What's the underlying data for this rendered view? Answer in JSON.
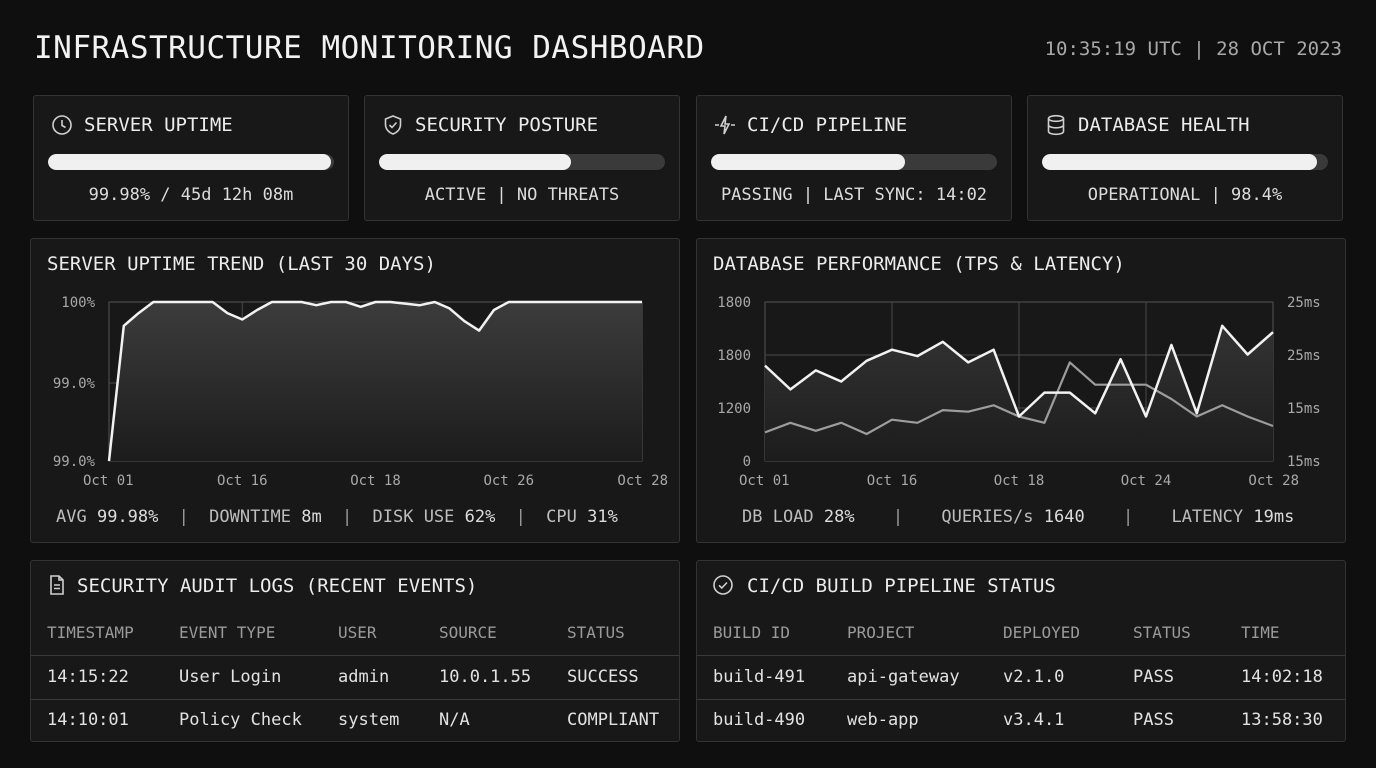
{
  "header": {
    "title": "INFRASTRUCTURE MONITORING DASHBOARD",
    "clock": "10:35:19 UTC | 28 OCT 2023"
  },
  "cards": [
    {
      "title": "SERVER UPTIME",
      "icon": "clock-icon",
      "progress": 0.99,
      "status": "99.98% / 45d 12h 08m"
    },
    {
      "title": "SECURITY POSTURE",
      "icon": "shield-icon",
      "progress": 0.67,
      "status": "ACTIVE | NO THREATS"
    },
    {
      "title": "CI/CD PIPELINE",
      "icon": "pipeline-icon",
      "progress": 0.68,
      "status": "PASSING | LAST SYNC: 14:02"
    },
    {
      "title": "DATABASE HEALTH",
      "icon": "database-icon",
      "progress": 0.96,
      "status": "OPERATIONAL | 98.4%"
    }
  ],
  "uptime_panel": {
    "title": "SERVER UPTIME TREND (LAST 30 DAYS)",
    "stats": {
      "avg_label": "AVG",
      "avg_value": "99.98%",
      "downtime_label": "DOWNTIME",
      "downtime_value": "8m",
      "disk_label": "DISK USE",
      "disk_value": "62%",
      "cpu_label": "CPU",
      "cpu_value": "31%",
      "sep": "|"
    }
  },
  "db_panel": {
    "title": "DATABASE PERFORMANCE (TPS & LATENCY)",
    "stats": {
      "load_label": "DB LOAD",
      "load_value": "28%",
      "queries_label": "QUERIES/s",
      "queries_value": "1640",
      "latency_label": "LATENCY",
      "latency_value": "19ms",
      "sep": "|"
    }
  },
  "chart_data": [
    {
      "type": "area",
      "title": "SERVER UPTIME TREND (LAST 30 DAYS)",
      "xlabel": "",
      "ylabel": "",
      "x_ticks": [
        "Oct 01",
        "Oct 16",
        "Oct 18",
        "Oct 26",
        "Oct 28"
      ],
      "y_ticks": [
        "100%",
        "99.0%",
        "99.0%"
      ],
      "grid": true,
      "series": [
        {
          "values": [
            0.0,
            0.85,
            0.93,
            1.0,
            1.0,
            1.0,
            1.0,
            1.0,
            0.93,
            0.89,
            0.95,
            1.0,
            1.0,
            1.0,
            0.98,
            1.0,
            1.0,
            0.97,
            1.0,
            1.0,
            0.99,
            0.98,
            1.0,
            0.96,
            0.88,
            0.82,
            0.95,
            1.0,
            1.0,
            1.0,
            1.0,
            1.0,
            1.0,
            1.0,
            1.0,
            1.0,
            1.0
          ]
        }
      ]
    },
    {
      "type": "line",
      "title": "DATABASE PERFORMANCE (TPS & LATENCY)",
      "xlabel": "",
      "ylabel": "",
      "x_ticks": [
        "Oct 01",
        "Oct 16",
        "Oct 18",
        "Oct 24",
        "Oct 28"
      ],
      "y_ticks_left": [
        "1800",
        "1800",
        "1200",
        "0"
      ],
      "y_ticks_right": [
        "25ms",
        "25ms",
        "15ms",
        "15ms"
      ],
      "grid": true,
      "series": [
        {
          "values": [
            0.6,
            0.45,
            0.57,
            0.5,
            0.63,
            0.7,
            0.66,
            0.75,
            0.62,
            0.7,
            0.28,
            0.43,
            0.43,
            0.3,
            0.64,
            0.28,
            0.73,
            0.3,
            0.85,
            0.67,
            0.81
          ]
        },
        {
          "values": [
            0.18,
            0.24,
            0.19,
            0.24,
            0.17,
            0.26,
            0.24,
            0.32,
            0.31,
            0.35,
            0.28,
            0.24,
            0.62,
            0.48,
            0.48,
            0.48,
            0.39,
            0.28,
            0.35,
            0.28,
            0.22
          ]
        }
      ]
    }
  ],
  "audit_table": {
    "title": "SECURITY AUDIT LOGS (RECENT EVENTS)",
    "headers": [
      "TIMESTAMP",
      "EVENT TYPE",
      "USER",
      "SOURCE",
      "STATUS"
    ],
    "rows": [
      [
        "14:15:22",
        "User Login",
        "admin",
        "10.0.1.55",
        "SUCCESS"
      ],
      [
        "14:10:01",
        "Policy Check",
        "system",
        "N/A",
        "COMPLIANT"
      ]
    ]
  },
  "build_table": {
    "title": "CI/CD BUILD PIPELINE STATUS",
    "headers": [
      "BUILD ID",
      "PROJECT",
      "DEPLOYED",
      "STATUS",
      "TIME"
    ],
    "rows": [
      [
        "build-491",
        "api-gateway",
        "v2.1.0",
        "PASS",
        "14:02:18"
      ],
      [
        "build-490",
        "web-app",
        "v3.4.1",
        "PASS",
        "13:58:30"
      ]
    ]
  }
}
